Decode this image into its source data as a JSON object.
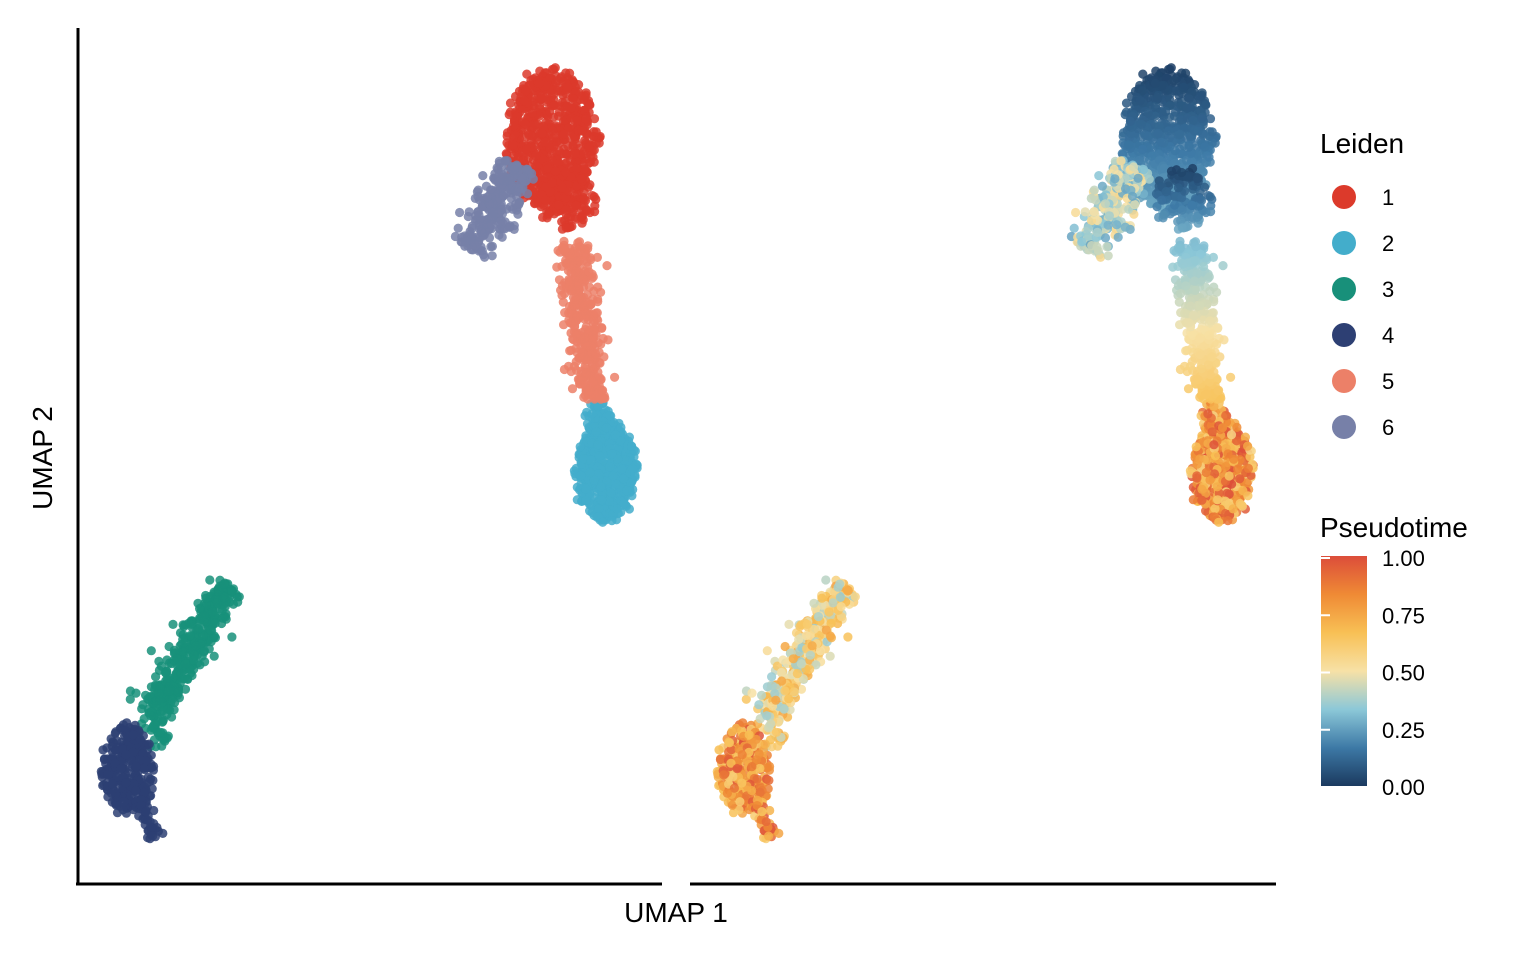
{
  "chart_data": {
    "type": "scatter",
    "title": "",
    "xlabel": "UMAP 1",
    "ylabel": "UMAP 2",
    "panels": [
      {
        "name": "",
        "color_by": "Leiden",
        "clusters": [
          {
            "label": "1",
            "color": "#DC3A2B",
            "ranges": [
              [
                3.5,
                4.4,
                7.5,
                9.2
              ]
            ]
          },
          {
            "label": "2",
            "color": "#43ADCB",
            "ranges": [
              [
                4.0,
                4.6,
                3.6,
                4.6
              ]
            ]
          },
          {
            "label": "3",
            "color": "#18907A",
            "ranges": [
              [
                -0.2,
                1.6,
                1.6,
                3.1
              ]
            ]
          },
          {
            "label": "4",
            "color": "#2D3F73",
            "ranges": [
              [
                -1.4,
                -0.5,
                0.4,
                1.6
              ]
            ]
          },
          {
            "label": "5",
            "color": "#EC8068",
            "ranges": [
              [
                3.8,
                4.4,
                4.6,
                6.6
              ]
            ]
          },
          {
            "label": "6",
            "color": "#7780A8",
            "ranges": [
              [
                2.7,
                3.7,
                7.0,
                7.9
              ]
            ]
          }
        ]
      },
      {
        "name": "",
        "color_by": "Pseudotime",
        "note_values": "continuous 0-1"
      }
    ],
    "legend": {
      "discrete_title": "Leiden",
      "discrete_entries": [
        {
          "label": "1",
          "color": "#DC3A2B"
        },
        {
          "label": "2",
          "color": "#43ADCB"
        },
        {
          "label": "3",
          "color": "#18907A"
        },
        {
          "label": "4",
          "color": "#2D3F73"
        },
        {
          "label": "5",
          "color": "#EC8068"
        },
        {
          "label": "6",
          "color": "#7780A8"
        }
      ],
      "continuous_title": "Pseudotime",
      "continuous_ticks": [
        "1.00",
        "0.75",
        "0.50",
        "0.25",
        "0.00"
      ],
      "continuous_colors": [
        "#1B3A5F",
        "#3D79A6",
        "#8CC8D8",
        "#F7E1A6",
        "#F8C055",
        "#EF8A35",
        "#DC4D3A"
      ],
      "placement": "right"
    },
    "grid": false
  }
}
